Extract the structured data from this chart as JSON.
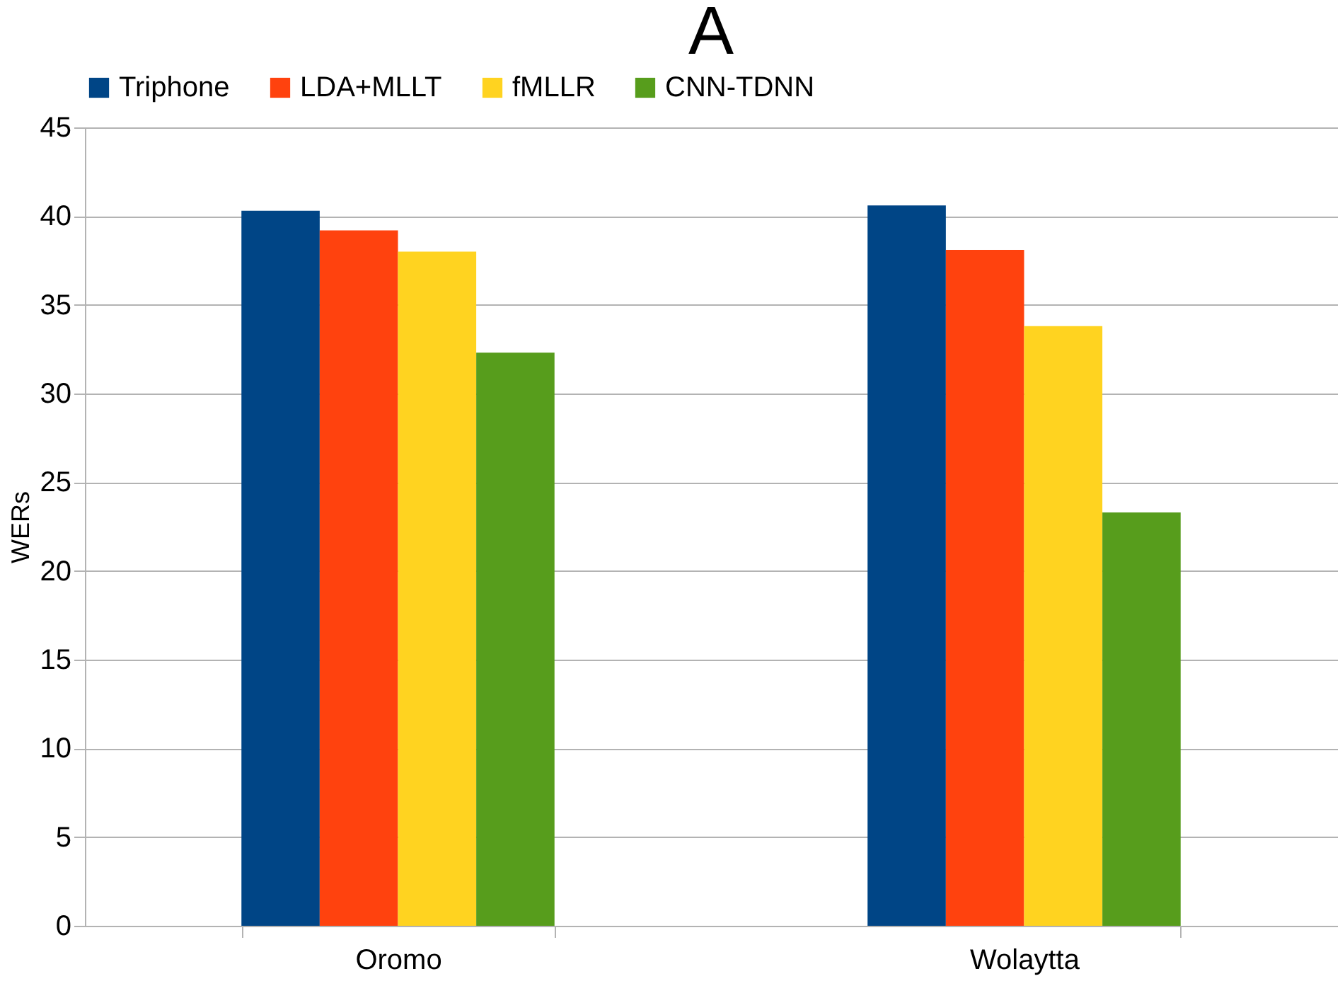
{
  "chart_data": {
    "type": "bar",
    "title": "A",
    "ylabel": "WERs",
    "categories": [
      "Oromo",
      "Wolaytta"
    ],
    "series": [
      {
        "name": "Triphone",
        "color": "#004586",
        "values": [
          40.3,
          40.6
        ]
      },
      {
        "name": "LDA+MLLT",
        "color": "#ff420e",
        "values": [
          39.2,
          38.1
        ]
      },
      {
        "name": "fMLLR",
        "color": "#ffd320",
        "values": [
          38.0,
          33.8
        ]
      },
      {
        "name": "CNN-TDNN",
        "color": "#579d1c",
        "values": [
          32.3,
          23.3
        ]
      }
    ],
    "ylim": [
      0,
      45
    ],
    "yticks": [
      0,
      5,
      10,
      15,
      20,
      25,
      30,
      35,
      40,
      45
    ],
    "grid": "y",
    "legend": "top"
  }
}
